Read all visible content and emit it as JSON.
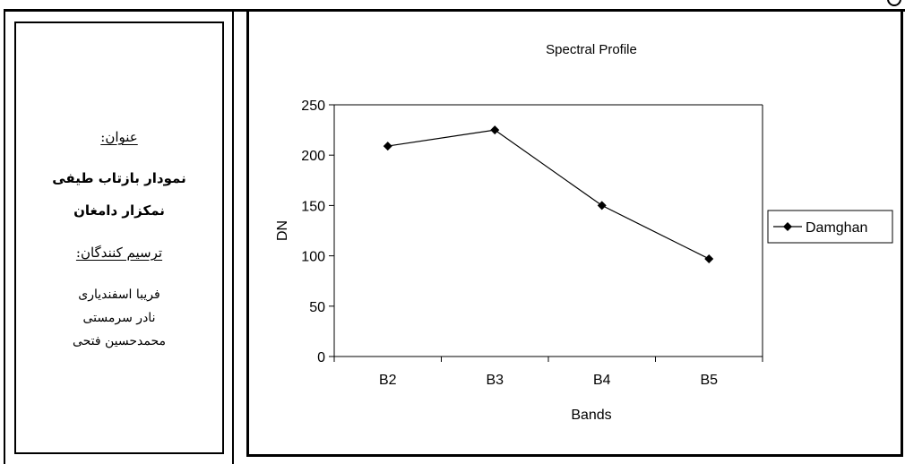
{
  "sidebar": {
    "title_label": "عنوان:",
    "title_lines": [
      "نمودار بازتاب طیفی",
      "نمکزار دامغان"
    ],
    "authors_label": "ترسیم کنندگان:",
    "authors": [
      "فریبا اسفندیاری",
      "نادر سرمستی",
      "محمدحسین فتحی"
    ]
  },
  "chart_data": {
    "type": "line",
    "title": "Spectral Profile",
    "xlabel": "Bands",
    "ylabel": "DN",
    "categories": [
      "B2",
      "B3",
      "B4",
      "B5"
    ],
    "series": [
      {
        "name": "Damghan",
        "values": [
          209,
          225,
          150,
          97
        ],
        "color": "#000000",
        "marker": "diamond"
      }
    ],
    "ylim": [
      0,
      250
    ],
    "yticks": [
      0,
      50,
      100,
      150,
      200,
      250
    ],
    "grid": false,
    "legend": "right"
  }
}
